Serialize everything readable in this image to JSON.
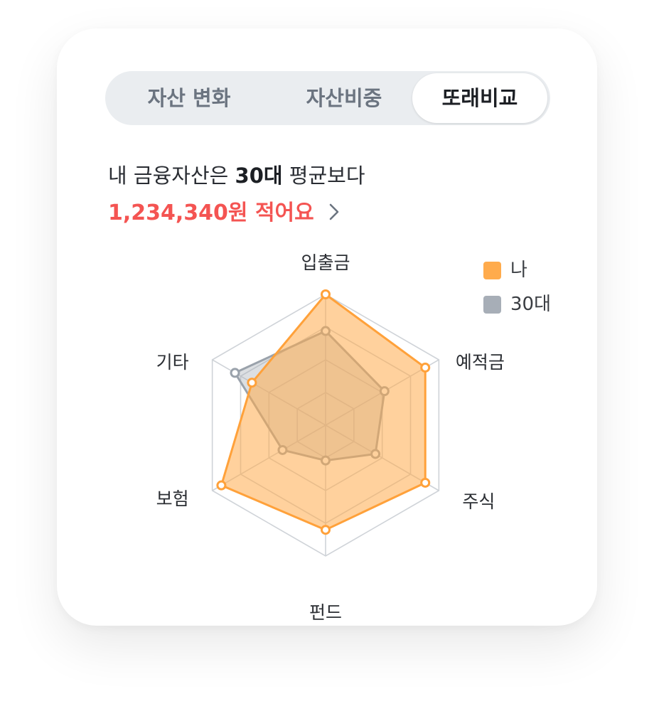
{
  "tabs": [
    {
      "label": "자산 변화",
      "active": false
    },
    {
      "label": "자산비중",
      "active": false
    },
    {
      "label": "또래비교",
      "active": true
    }
  ],
  "headline": {
    "prefix": "내 금융자산은 ",
    "group": "30대",
    "suffix": " 평균보다"
  },
  "amount_text": "1,234,340원 적어요",
  "colors": {
    "accent_red": "#f45452",
    "me": "#ffab4c",
    "peer": "#a7aeb7"
  },
  "icons": {
    "detail": "chevron-right-icon"
  },
  "chart_data": {
    "type": "radar",
    "categories": [
      "입출금",
      "예적금",
      "주식",
      "펀드",
      "보험",
      "기타"
    ],
    "series": [
      {
        "name": "나",
        "values": [
          1.0,
          0.88,
          0.88,
          0.8,
          0.92,
          0.65
        ]
      },
      {
        "name": "30대",
        "values": [
          0.72,
          0.52,
          0.44,
          0.27,
          0.38,
          0.8
        ]
      }
    ],
    "range": [
      0,
      1
    ],
    "grid_levels": 4,
    "legend": {
      "placement": "top-right"
    }
  }
}
